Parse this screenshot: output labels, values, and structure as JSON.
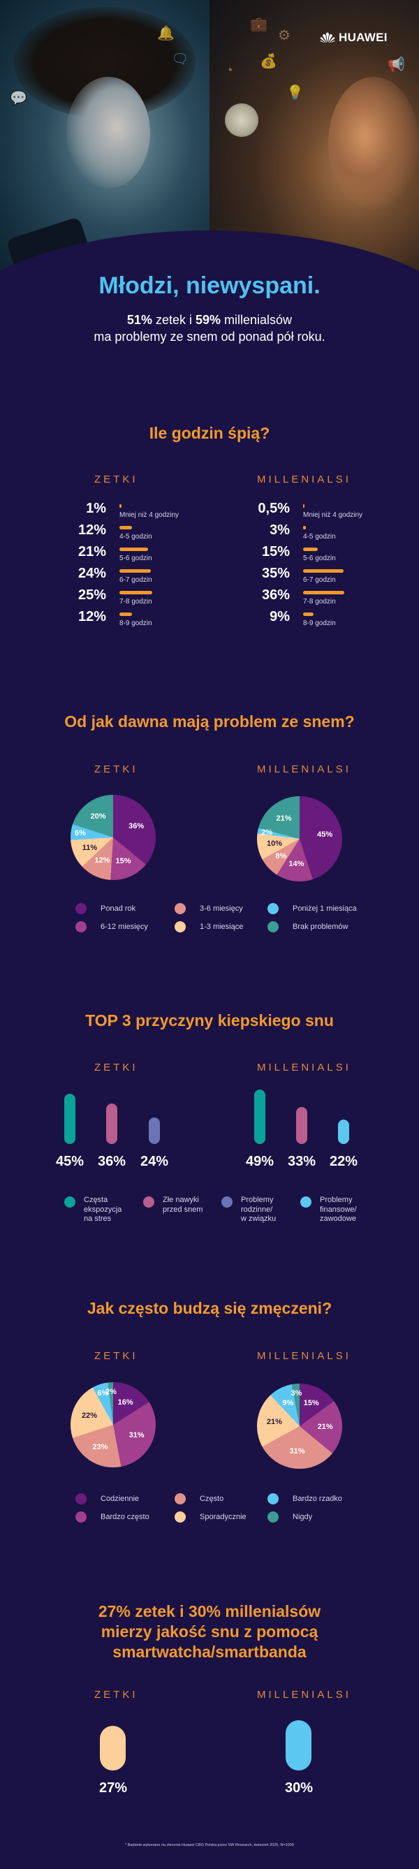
{
  "brand": {
    "name": "HUAWEI"
  },
  "hero": {
    "title": "Młodzi, niewyspani.",
    "subtitle_line1_parts": [
      "51%",
      " zetek i ",
      "59%",
      " millenialsów"
    ],
    "subtitle_line2": "ma problemy ze snem od ponad pół roku."
  },
  "groups": {
    "zetki": "ZETKI",
    "millenials": "MILLENIALSI"
  },
  "colors": {
    "background": "#1a1244",
    "title_blue": "#4fc3f0",
    "section_orange": "#f39a2c",
    "purple": "#6a1b7e",
    "magenta": "#a23f8e",
    "salmon": "#e2928a",
    "peach": "#fdcf9a",
    "light_blue": "#5cc8f2",
    "teal": "#3c9c96",
    "bar_teal": "#0aa39a",
    "bar_pink": "#b95e8e",
    "bar_indigo": "#6c74b8"
  },
  "sections": {
    "sleep_hours": {
      "title": "Ile godzin śpią?"
    },
    "problem_duration": {
      "title": "Od jak dawna mają problem ze snem?"
    },
    "top3": {
      "title": "TOP 3 przyczyny kiepskiego snu"
    },
    "tired": {
      "title": "Jak często budzą się zmęczeni?"
    },
    "smartwatch": {
      "title_line1": "27% zetek i 30% millenialsów",
      "title_line2": "mierzy jakość snu z pomocą",
      "title_line3": "smartwatcha/smartbanda"
    }
  },
  "chart_data": [
    {
      "type": "bar",
      "orientation": "horizontal",
      "title": "Ile godzin śpią?",
      "categories": [
        "Mniej niż 4 godziny",
        "4-5 godzin",
        "5-6 godzin",
        "6-7 godzin",
        "7-8 godzin",
        "8-9 godzin"
      ],
      "series": [
        {
          "name": "ZETKI",
          "values": [
            1,
            12,
            21,
            24,
            25,
            12
          ],
          "labels": [
            "1%",
            "12%",
            "21%",
            "24%",
            "25%",
            "12%"
          ]
        },
        {
          "name": "MILLENIALSI",
          "values": [
            0.5,
            3,
            15,
            35,
            36,
            9
          ],
          "labels": [
            "0,5%",
            "3%",
            "15%",
            "35%",
            "36%",
            "9%"
          ]
        }
      ],
      "unit": "%"
    },
    {
      "type": "pie",
      "title": "Od jak dawna mają problem ze snem?",
      "categories": [
        "Ponad rok",
        "6-12 miesięcy",
        "3-6 miesięcy",
        "1-3 miesiące",
        "Poniżej 1 miesiąca",
        "Brak problemów"
      ],
      "legend": [
        "Ponad rok",
        "6-12 miesięcy",
        "3-6 miesięcy",
        "1-3 miesiące",
        "Poniżej 1 miesiąca",
        "Brak problemów"
      ],
      "series": [
        {
          "name": "ZETKI",
          "values": [
            36,
            15,
            12,
            11,
            6,
            20
          ]
        },
        {
          "name": "MILLENIALSI",
          "values": [
            45,
            14,
            8,
            10,
            2,
            21
          ]
        }
      ],
      "legend_position": "bottom"
    },
    {
      "type": "bar",
      "orientation": "vertical",
      "title": "TOP 3 przyczyny kiepskiego snu",
      "series": [
        {
          "name": "ZETKI",
          "categories": [
            "Częsta ekspozycja na stres",
            "Złe nawyki przed snem",
            "Problemy rodzinne/w związku"
          ],
          "values": [
            45,
            36,
            24
          ]
        },
        {
          "name": "MILLENIALSI",
          "categories": [
            "Częsta ekspozycja na stres",
            "Złe nawyki przed snem",
            "Problemy finansowe/zawodowe"
          ],
          "values": [
            49,
            33,
            22
          ]
        }
      ],
      "legend": [
        "Częsta ekspozycja na stres",
        "Złe nawyki przed snem",
        "Problemy rodzinne/ w związku",
        "Problemy finansowe/ zawodowe"
      ],
      "unit": "%"
    },
    {
      "type": "pie",
      "title": "Jak często budzą się zmęczeni?",
      "categories": [
        "Codziennie",
        "Bardzo często",
        "Często",
        "Sporadycznie",
        "Bardzo rzadko",
        "Nigdy"
      ],
      "series": [
        {
          "name": "ZETKI",
          "values": [
            16,
            31,
            23,
            22,
            6,
            2
          ]
        },
        {
          "name": "MILLENIALSI",
          "values": [
            15,
            21,
            31,
            21,
            9,
            3
          ]
        }
      ],
      "legend_position": "bottom"
    },
    {
      "type": "bar",
      "title": "27% zetek i 30% millenialsów mierzy jakość snu z pomocą smartwatcha/smartbanda",
      "categories": [
        "ZETKI",
        "MILLENIALSI"
      ],
      "values": [
        27,
        30
      ],
      "labels": [
        "27%",
        "30%"
      ],
      "unit": "%"
    }
  ],
  "sleep_hours": {
    "zetki": [
      {
        "value": "1%",
        "label": "Mniej niż 4 godziny",
        "w": 3
      },
      {
        "value": "12%",
        "label": "4-5 godzin",
        "w": 18
      },
      {
        "value": "21%",
        "label": "5-6 godzin",
        "w": 41
      },
      {
        "value": "24%",
        "label": "6-7 godzin",
        "w": 45
      },
      {
        "value": "25%",
        "label": "7-8 godzin",
        "w": 47
      },
      {
        "value": "12%",
        "label": "8-9 godzin",
        "w": 18
      }
    ],
    "millenials": [
      {
        "value": "0,5%",
        "label": "Mniej niż 4 godziny",
        "w": 2
      },
      {
        "value": "3%",
        "label": "4-5 godzin",
        "w": 4
      },
      {
        "value": "15%",
        "label": "5-6 godzin",
        "w": 21
      },
      {
        "value": "35%",
        "label": "6-7 godzin",
        "w": 58
      },
      {
        "value": "36%",
        "label": "7-8 godzin",
        "w": 59
      },
      {
        "value": "9%",
        "label": "8-9 godzin",
        "w": 15
      }
    ]
  },
  "duration_pies": {
    "zetki_labels": [
      "36%",
      "15%",
      "12%",
      "11%",
      "6%",
      "20%"
    ],
    "millenials_labels": [
      "45%",
      "14%",
      "8%",
      "10%",
      "2%",
      "21%"
    ],
    "legend": [
      "Ponad rok",
      "6-12 miesięcy",
      "3-6 miesięcy",
      "1-3 miesiące",
      "Poniżej 1 miesiąca",
      "Brak problemów"
    ]
  },
  "top3": {
    "zetki_values": [
      "45%",
      "36%",
      "24%"
    ],
    "millenials_values": [
      "49%",
      "33%",
      "22%"
    ],
    "legend": [
      [
        "Częsta",
        "ekspozycja",
        "na stres"
      ],
      [
        "Złe nawyki",
        "przed snem"
      ],
      [
        "Problemy",
        "rodzinne/",
        "w związku"
      ],
      [
        "Problemy",
        "finansowe/",
        "zawodowe"
      ]
    ]
  },
  "tired_pies": {
    "zetki_labels": [
      "16%",
      "31%",
      "23%",
      "22%",
      "6%",
      "2%"
    ],
    "millenials_labels": [
      "15%",
      "21%",
      "31%",
      "21%",
      "9%",
      "3%"
    ],
    "legend": [
      "Codziennie",
      "Bardzo często",
      "Często",
      "Sporadycznie",
      "Bardzo rzadko",
      "Nigdy"
    ]
  },
  "smartwatch": {
    "zetki_value": "27%",
    "millenials_value": "30%"
  },
  "footnote": "* Badanie wykonane na zlecenie Huawei CBG Polska przez SW Research, kwiecień 2025, N=1009"
}
